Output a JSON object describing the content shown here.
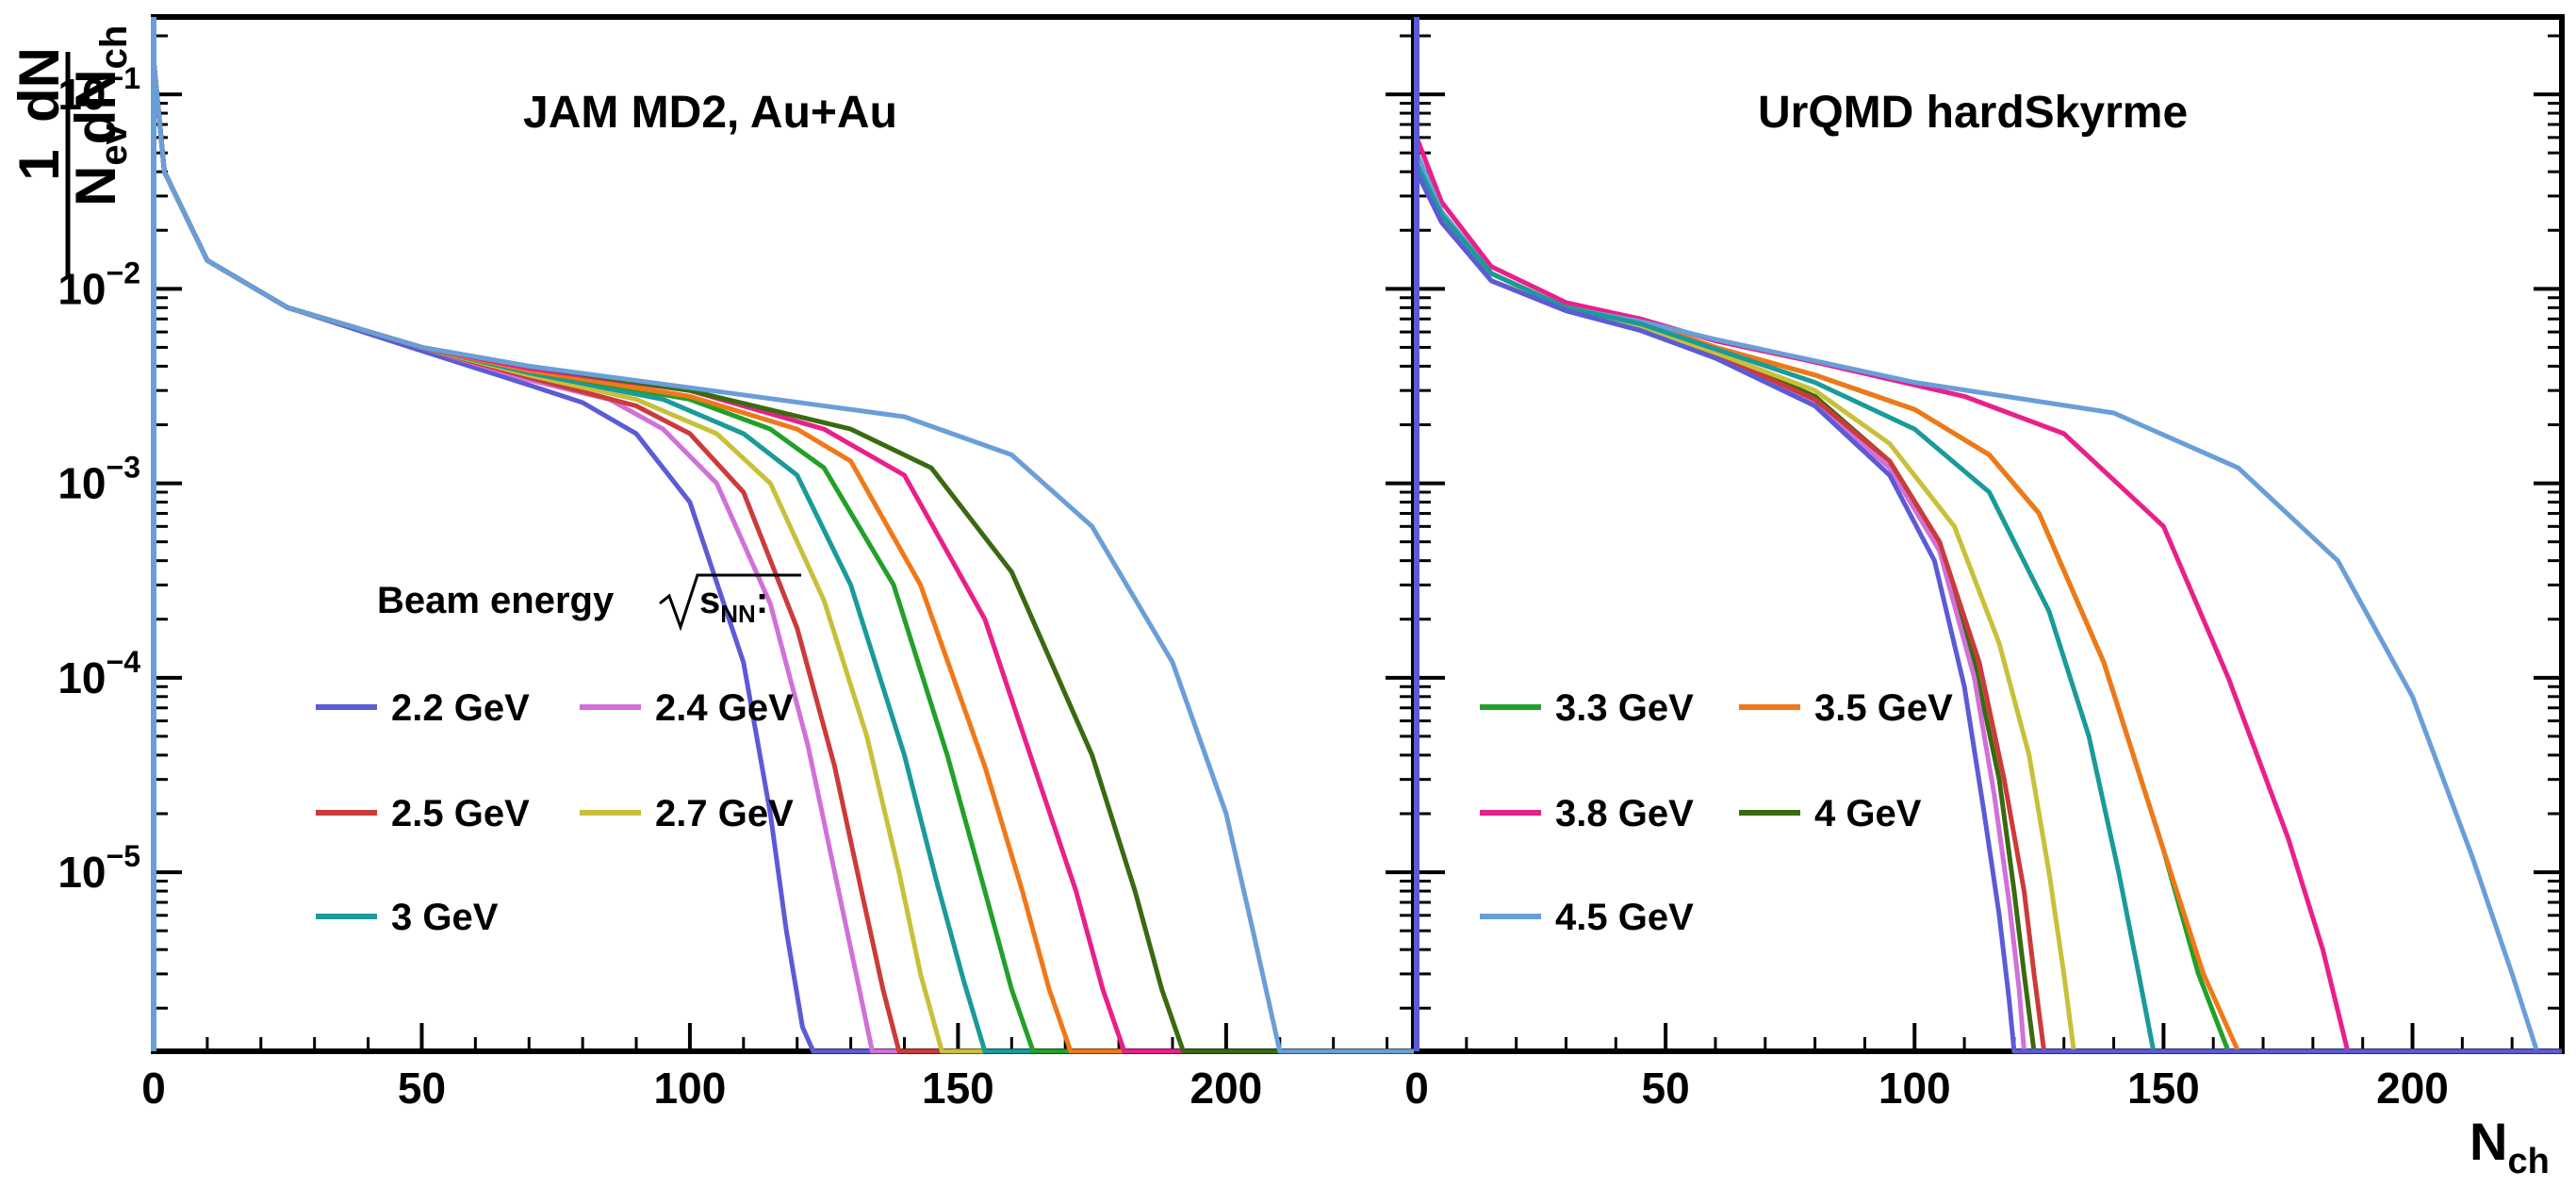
{
  "chart_data": [
    {
      "type": "line",
      "panel": "left",
      "title": "JAM MD2, Au+Au",
      "xlabel": "N_ch",
      "ylabel": "1/N_ev dN/dN_ch",
      "ylabel_parts": {
        "numerator_top": "1",
        "denominator_top": "N",
        "denominator_top_sub": "ev",
        "numerator_bottom": "dN",
        "denominator_bottom": "dN",
        "denominator_bottom_sub": "ch"
      },
      "yscale": "log",
      "xlim": [
        0,
        235
      ],
      "ylim": [
        1.2e-06,
        0.25
      ],
      "xticks": [
        0,
        50,
        100,
        150,
        200
      ],
      "yticks": [
        {
          "value": 0.1,
          "base": "10",
          "exp": "−1"
        },
        {
          "value": 0.01,
          "base": "10",
          "exp": "−2"
        },
        {
          "value": 0.001,
          "base": "10",
          "exp": "−3"
        },
        {
          "value": 0.0001,
          "base": "10",
          "exp": "−4"
        },
        {
          "value": 1e-05,
          "base": "10",
          "exp": "−5"
        }
      ],
      "legend_header": {
        "text": "Beam energy",
        "sqrt_sub": "s",
        "sqrt_subsub": "NN",
        "suffix": ":"
      },
      "series": [
        {
          "name": "2.2 GeV",
          "color": "#5b5bd6",
          "nmax": 123,
          "x": [
            0,
            2,
            10,
            25,
            50,
            70,
            80,
            90,
            100,
            110,
            115,
            118,
            121,
            123
          ],
          "y": [
            0.15,
            0.04,
            0.014,
            0.008,
            0.0048,
            0.0032,
            0.0026,
            0.0018,
            0.0008,
            0.00012,
            2e-05,
            5e-06,
            1.6e-06,
            1.2e-06
          ]
        },
        {
          "name": "2.4 GeV",
          "color": "#d070d8",
          "nmax": 134,
          "x": [
            0,
            2,
            10,
            25,
            50,
            70,
            85,
            95,
            105,
            115,
            122,
            127,
            131,
            134
          ],
          "y": [
            0.15,
            0.04,
            0.014,
            0.008,
            0.005,
            0.0034,
            0.0027,
            0.0019,
            0.001,
            0.00024,
            4.5e-05,
            1e-05,
            3e-06,
            1.2e-06
          ]
        },
        {
          "name": "2.5 GeV",
          "color": "#cc3a3a",
          "nmax": 139,
          "x": [
            0,
            2,
            10,
            25,
            50,
            70,
            90,
            100,
            110,
            120,
            127,
            132,
            136,
            139
          ],
          "y": [
            0.15,
            0.04,
            0.014,
            0.008,
            0.005,
            0.0035,
            0.0025,
            0.0018,
            0.0009,
            0.00018,
            3.5e-05,
            8e-06,
            2.5e-06,
            1.2e-06
          ]
        },
        {
          "name": "2.7 GeV",
          "color": "#c8c03a",
          "nmax": 147,
          "x": [
            0,
            2,
            10,
            25,
            50,
            70,
            90,
            105,
            115,
            125,
            133,
            139,
            143,
            147
          ],
          "y": [
            0.15,
            0.04,
            0.014,
            0.008,
            0.005,
            0.0036,
            0.0027,
            0.0018,
            0.001,
            0.00025,
            5e-05,
            1e-05,
            3e-06,
            1.2e-06
          ]
        },
        {
          "name": "3 GeV",
          "color": "#1a9a9a",
          "nmax": 155,
          "x": [
            0,
            2,
            10,
            25,
            50,
            70,
            95,
            110,
            120,
            130,
            140,
            146,
            151,
            155
          ],
          "y": [
            0.15,
            0.04,
            0.014,
            0.008,
            0.005,
            0.0037,
            0.0027,
            0.0018,
            0.0011,
            0.0003,
            4e-05,
            9e-06,
            2.8e-06,
            1.2e-06
          ]
        },
        {
          "name": "3.3 GeV",
          "color": "#22a02a",
          "nmax": 164,
          "x": [
            0,
            2,
            10,
            25,
            50,
            70,
            100,
            115,
            125,
            138,
            148,
            155,
            160,
            164
          ],
          "y": [
            0.15,
            0.04,
            0.014,
            0.008,
            0.005,
            0.0038,
            0.0027,
            0.0019,
            0.0012,
            0.0003,
            4e-05,
            8e-06,
            2.5e-06,
            1.2e-06
          ]
        },
        {
          "name": "3.5 GeV",
          "color": "#f07818",
          "nmax": 171,
          "x": [
            0,
            2,
            10,
            25,
            50,
            70,
            100,
            120,
            130,
            143,
            155,
            162,
            167,
            171
          ],
          "y": [
            0.15,
            0.04,
            0.014,
            0.008,
            0.005,
            0.0038,
            0.0028,
            0.0019,
            0.0013,
            0.0003,
            3.5e-05,
            8e-06,
            2.5e-06,
            1.2e-06
          ]
        },
        {
          "name": "3.8 GeV",
          "color": "#e8208a",
          "nmax": 181,
          "x": [
            0,
            2,
            10,
            25,
            50,
            70,
            100,
            125,
            140,
            155,
            165,
            172,
            177,
            181
          ],
          "y": [
            0.15,
            0.04,
            0.014,
            0.008,
            0.005,
            0.0039,
            0.003,
            0.0019,
            0.0011,
            0.0002,
            3e-05,
            8e-06,
            2.5e-06,
            1.2e-06
          ]
        },
        {
          "name": "4 GeV",
          "color": "#3a6a10",
          "nmax": 192,
          "x": [
            0,
            2,
            10,
            25,
            50,
            70,
            100,
            130,
            145,
            160,
            175,
            183,
            188,
            192
          ],
          "y": [
            0.15,
            0.04,
            0.014,
            0.008,
            0.005,
            0.004,
            0.003,
            0.0019,
            0.0012,
            0.00035,
            4e-05,
            8e-06,
            2.5e-06,
            1.2e-06
          ]
        },
        {
          "name": "4.5 GeV",
          "color": "#6a9ed8",
          "nmax": 210,
          "x": [
            0,
            2,
            10,
            25,
            50,
            70,
            100,
            140,
            160,
            175,
            190,
            200,
            205,
            210
          ],
          "y": [
            0.15,
            0.04,
            0.014,
            0.008,
            0.005,
            0.004,
            0.0031,
            0.0022,
            0.0014,
            0.0006,
            0.00012,
            2e-05,
            5e-06,
            1.2e-06
          ]
        }
      ]
    },
    {
      "type": "line",
      "panel": "right",
      "title": "UrQMD hardSkyrme",
      "xlabel": "N_ch",
      "yscale": "log",
      "xlim": [
        0,
        230
      ],
      "ylim": [
        1.2e-06,
        0.25
      ],
      "xticks": [
        0,
        50,
        100,
        150,
        200
      ],
      "series": [
        {
          "name": "3.3 GeV",
          "color": "#22a02a",
          "nmax": 163,
          "x": [
            0,
            5,
            15,
            30,
            45,
            60,
            80,
            100,
            115,
            125,
            138,
            150,
            157,
            163
          ],
          "y": [
            0.045,
            0.024,
            0.012,
            0.008,
            0.0068,
            0.005,
            0.0036,
            0.0024,
            0.0014,
            0.0007,
            0.00012,
            1.3e-05,
            3e-06,
            1.2e-06
          ]
        },
        {
          "name": "3.5 GeV",
          "color": "#f07818",
          "nmax": 165,
          "x": [
            0,
            5,
            15,
            30,
            45,
            60,
            80,
            100,
            115,
            125,
            138,
            150,
            158,
            165
          ],
          "y": [
            0.045,
            0.024,
            0.012,
            0.008,
            0.0068,
            0.005,
            0.0036,
            0.0024,
            0.0014,
            0.0007,
            0.00012,
            1.3e-05,
            3e-06,
            1.2e-06
          ]
        },
        {
          "name": "3.8 GeV",
          "color": "#e8208a",
          "nmax": 187,
          "x": [
            0,
            5,
            15,
            30,
            45,
            60,
            80,
            110,
            130,
            150,
            163,
            175,
            182,
            187
          ],
          "y": [
            0.06,
            0.028,
            0.013,
            0.0085,
            0.007,
            0.0054,
            0.0042,
            0.0028,
            0.0018,
            0.0006,
            0.0001,
            1.5e-05,
            4e-06,
            1.2e-06
          ]
        },
        {
          "name": "4 GeV",
          "color": "#3a6a10",
          "nmax": 124,
          "x": [
            0,
            5,
            15,
            30,
            45,
            60,
            80,
            95,
            105,
            112,
            117,
            120,
            122,
            124
          ],
          "y": [
            0.05,
            0.025,
            0.012,
            0.008,
            0.0065,
            0.0047,
            0.0028,
            0.0013,
            0.0005,
            0.00012,
            3e-05,
            8e-06,
            3e-06,
            1.2e-06
          ]
        },
        {
          "name": "4.5 GeV",
          "color": "#6a9ed8",
          "nmax": 225,
          "x": [
            0,
            5,
            15,
            30,
            45,
            60,
            100,
            140,
            165,
            185,
            200,
            212,
            220,
            225
          ],
          "y": [
            0.05,
            0.025,
            0.012,
            0.008,
            0.0068,
            0.0055,
            0.0033,
            0.0023,
            0.0012,
            0.0004,
            8e-05,
            1.2e-05,
            3e-06,
            1.2e-06
          ]
        },
        {
          "name": "2.4 GeV",
          "color": "#d070d8",
          "nmax": 122,
          "x": [
            0,
            5,
            15,
            30,
            45,
            60,
            80,
            95,
            105,
            112,
            116,
            119,
            121,
            122
          ],
          "y": [
            0.04,
            0.022,
            0.011,
            0.0078,
            0.0062,
            0.0045,
            0.0026,
            0.0012,
            0.00045,
            0.0001,
            2.5e-05,
            7e-06,
            2.5e-06,
            1.2e-06
          ]
        },
        {
          "name": "2.5 GeV",
          "color": "#cc3a3a",
          "nmax": 126,
          "x": [
            0,
            5,
            15,
            30,
            45,
            60,
            80,
            95,
            105,
            113,
            118,
            122,
            124,
            126
          ],
          "y": [
            0.042,
            0.023,
            0.011,
            0.0078,
            0.0063,
            0.0046,
            0.0027,
            0.0013,
            0.0005,
            0.00012,
            3e-05,
            8e-06,
            3e-06,
            1.2e-06
          ]
        },
        {
          "name": "2.7 GeV",
          "color": "#c8c03a",
          "nmax": 132,
          "x": [
            0,
            5,
            15,
            30,
            45,
            60,
            80,
            95,
            108,
            117,
            123,
            127,
            130,
            132
          ],
          "y": [
            0.042,
            0.023,
            0.011,
            0.0079,
            0.0064,
            0.0047,
            0.003,
            0.0016,
            0.0006,
            0.00015,
            4e-05,
            1e-05,
            3e-06,
            1.2e-06
          ]
        },
        {
          "name": "3 GeV",
          "color": "#1a9a9a",
          "nmax": 148,
          "x": [
            0,
            5,
            15,
            30,
            45,
            60,
            80,
            100,
            115,
            127,
            135,
            141,
            145,
            148
          ],
          "y": [
            0.044,
            0.024,
            0.012,
            0.008,
            0.0066,
            0.0049,
            0.0033,
            0.0019,
            0.0009,
            0.00022,
            5e-05,
            1e-05,
            3e-06,
            1.2e-06
          ]
        },
        {
          "name": "2.2 GeV",
          "color": "#5b5bd6",
          "nmax": 120,
          "x": [
            0,
            5,
            15,
            30,
            45,
            60,
            80,
            95,
            104,
            110,
            114,
            117,
            119,
            120
          ],
          "y": [
            0.04,
            0.022,
            0.011,
            0.0077,
            0.0061,
            0.0044,
            0.0025,
            0.0011,
            0.0004,
            9e-05,
            2e-05,
            6e-06,
            2.2e-06,
            1.2e-06
          ]
        }
      ],
      "legend_entries": [
        "3.3 GeV",
        "3.5 GeV",
        "3.8 GeV",
        "4 GeV",
        "4.5 GeV"
      ]
    }
  ]
}
